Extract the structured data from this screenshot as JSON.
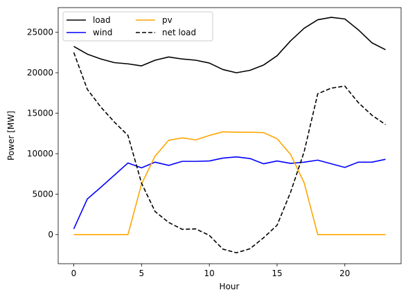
{
  "chart_data": {
    "type": "line",
    "title": "",
    "xlabel": "Hour",
    "ylabel": "Power [MW]",
    "xlim": [
      -1.15,
      24.15
    ],
    "ylim": [
      -3600,
      28050
    ],
    "xticks": [
      0,
      5,
      10,
      15,
      20
    ],
    "yticks": [
      0,
      5000,
      10000,
      15000,
      20000,
      25000
    ],
    "grid": false,
    "legend": {
      "placement": "top-left",
      "columns": 2
    },
    "x": [
      0,
      1,
      2,
      3,
      4,
      5,
      6,
      7,
      8,
      9,
      10,
      11,
      12,
      13,
      14,
      15,
      16,
      17,
      18,
      19,
      20,
      21,
      22,
      23
    ],
    "series": [
      {
        "name": "load",
        "color": "#000000",
        "dash": "solid",
        "values": [
          23250,
          22300,
          21700,
          21250,
          21100,
          20850,
          21550,
          21950,
          21700,
          21550,
          21200,
          20400,
          20000,
          20300,
          20950,
          22100,
          23950,
          25500,
          26550,
          26850,
          26650,
          25300,
          23700,
          22850
        ]
      },
      {
        "name": "wind",
        "color": "#0000ff",
        "dash": "solid",
        "values": [
          700,
          4400,
          5850,
          7350,
          8850,
          8250,
          8950,
          8550,
          9050,
          9050,
          9100,
          9450,
          9600,
          9400,
          8750,
          9100,
          8800,
          8950,
          9200,
          8750,
          8300,
          8950,
          8950,
          9300
        ]
      },
      {
        "name": "pv",
        "color": "#ffa500",
        "dash": "solid",
        "values": [
          0,
          0,
          0,
          0,
          0,
          6250,
          9700,
          11650,
          11950,
          11700,
          12250,
          12700,
          12650,
          12650,
          12600,
          11850,
          9900,
          6400,
          0,
          0,
          0,
          0,
          0,
          0
        ]
      },
      {
        "name": "net load",
        "color": "#000000",
        "dash": "dashed",
        "values": [
          22500,
          17950,
          15750,
          13900,
          12250,
          6350,
          2850,
          1500,
          650,
          700,
          -100,
          -1800,
          -2250,
          -1750,
          -400,
          1150,
          5250,
          10250,
          17400,
          18100,
          18350,
          16300,
          14750,
          13600
        ]
      }
    ]
  }
}
